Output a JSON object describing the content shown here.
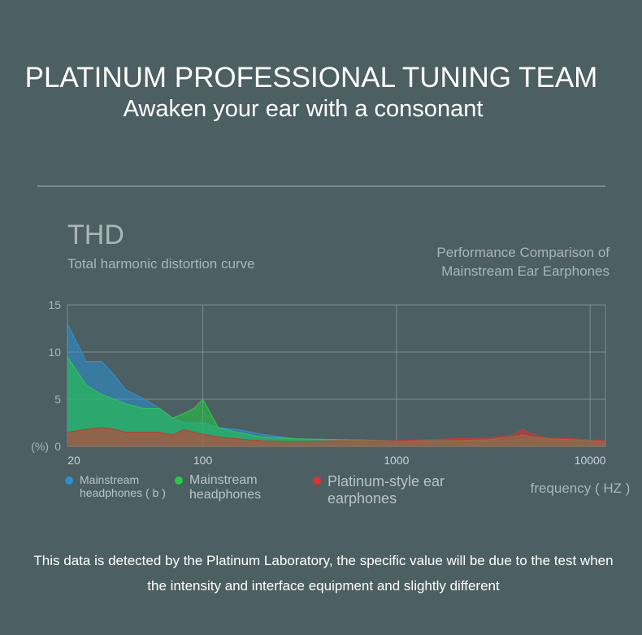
{
  "header": {
    "title": "PLATINUM PROFESSIONAL TUNING TEAM",
    "subtitle": "Awaken your ear with a consonant"
  },
  "chart_data": {
    "type": "area",
    "title": "THD",
    "subtitle": "Total harmonic distortion curve",
    "annotation": [
      "Performance Comparison of",
      "Mainstream Ear Earphones"
    ],
    "x_label": "frequency ( HZ )",
    "y_label": "(%)",
    "x_scale": "log",
    "grid": true,
    "xlim": [
      20,
      12000
    ],
    "xticks": [
      20,
      100,
      1000,
      10000
    ],
    "ylim": [
      0,
      15
    ],
    "yticks": [
      0,
      5,
      10,
      15
    ],
    "x": [
      20,
      25,
      30,
      35,
      40,
      50,
      60,
      70,
      80,
      90,
      100,
      120,
      150,
      200,
      300,
      500,
      1000,
      2000,
      3000,
      4000,
      4500,
      5000,
      6000,
      8000,
      10000,
      12000
    ],
    "series": [
      {
        "name": "Mainstream headphones ( b )",
        "color": "#2a8fd6",
        "values": [
          13,
          9,
          9,
          7.5,
          6,
          5,
          4,
          3,
          2.5,
          2.5,
          2.5,
          2,
          1.8,
          1.3,
          0.8,
          0.7,
          0.6,
          0.6,
          0.6,
          0.7,
          0.8,
          0.8,
          0.7,
          0.7,
          0.6,
          0.5
        ]
      },
      {
        "name": "Mainstream headphones",
        "color": "#22cc44",
        "values": [
          9.5,
          6.5,
          5.5,
          5,
          4.5,
          4,
          4,
          3,
          3.5,
          4,
          5,
          2,
          1.5,
          1,
          0.8,
          0.7,
          0.6,
          0.6,
          0.7,
          1,
          1.2,
          1,
          0.8,
          0.7,
          0.6,
          0.5
        ]
      },
      {
        "name": "Platinum-style ear earphones",
        "color": "#e03030",
        "values": [
          1.5,
          1.8,
          2,
          1.8,
          1.5,
          1.5,
          1.5,
          1.2,
          1.8,
          1.5,
          1.3,
          1,
          0.8,
          0.6,
          0.5,
          0.6,
          0.6,
          0.8,
          0.9,
          1.2,
          1.8,
          1.3,
          0.9,
          0.8,
          0.7,
          0.6
        ]
      }
    ]
  },
  "footer": "This data is detected by the Platinum Laboratory, the specific value will be due to the test when the intensity and interface equipment and slightly different"
}
